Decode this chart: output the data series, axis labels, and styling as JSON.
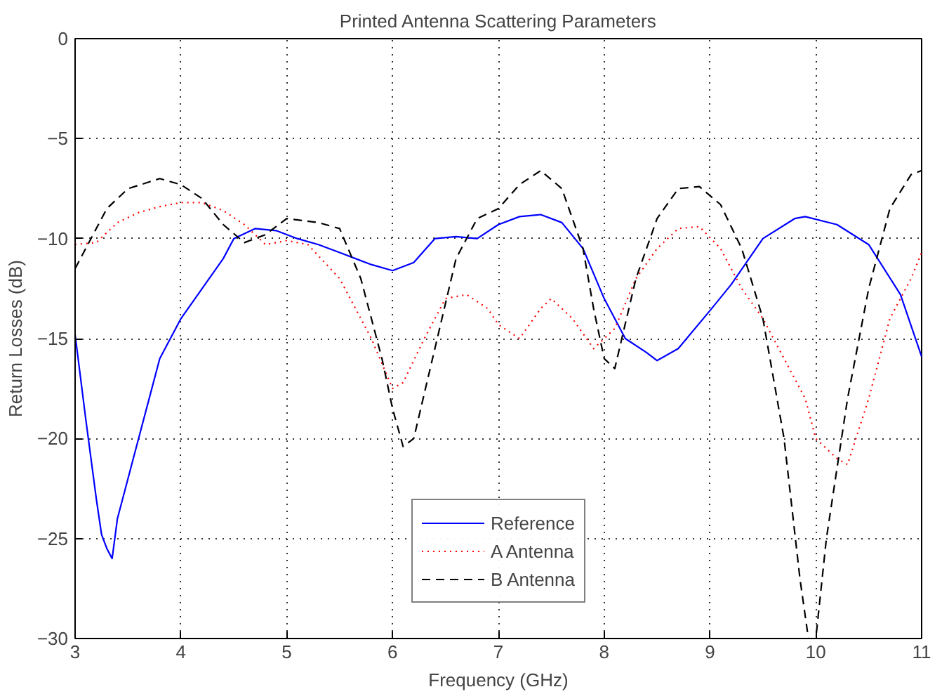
{
  "chart_data": {
    "type": "line",
    "title": "Printed Antenna Scattering Parameters",
    "xlabel": "Frequency (GHz)",
    "ylabel": "Return Losses (dB)",
    "xlim": [
      3,
      11
    ],
    "ylim": [
      -30,
      0
    ],
    "xticks": [
      3,
      4,
      5,
      6,
      7,
      8,
      9,
      10,
      11
    ],
    "yticks": [
      -30,
      -25,
      -20,
      -15,
      -10,
      -5,
      0
    ],
    "grid": true,
    "legend": "bottom",
    "marker": "none",
    "series": [
      {
        "name": "Reference",
        "color": "#0000ff",
        "line_style": "solid",
        "x": [
          3.0,
          3.1,
          3.2,
          3.25,
          3.3,
          3.35,
          3.4,
          3.5,
          3.6,
          3.7,
          3.8,
          4.0,
          4.2,
          4.4,
          4.5,
          4.7,
          4.9,
          5.1,
          5.3,
          5.5,
          5.8,
          6.0,
          6.2,
          6.4,
          6.6,
          6.8,
          7.0,
          7.2,
          7.4,
          7.6,
          7.8,
          8.0,
          8.2,
          8.4,
          8.5,
          8.7,
          9.0,
          9.2,
          9.5,
          9.8,
          9.9,
          10.2,
          10.5,
          10.8,
          11.0
        ],
        "values": [
          -14.8,
          -19,
          -23,
          -24.8,
          -25.5,
          -26,
          -24,
          -22,
          -20,
          -18,
          -16,
          -14,
          -12.5,
          -11,
          -10,
          -9.5,
          -9.6,
          -10,
          -10.3,
          -10.7,
          -11.3,
          -11.6,
          -11.2,
          -10,
          -9.9,
          -10,
          -9.3,
          -8.9,
          -8.8,
          -9.2,
          -10.5,
          -13,
          -15,
          -15.7,
          -16.1,
          -15.5,
          -13.6,
          -12.3,
          -10,
          -9,
          -8.9,
          -9.3,
          -10.3,
          -12.8,
          -15.9
        ]
      },
      {
        "name": "A Antenna",
        "color": "#ff0000",
        "line_style": "dotted",
        "x": [
          3.0,
          3.2,
          3.4,
          3.6,
          3.8,
          4.0,
          4.2,
          4.4,
          4.6,
          4.8,
          5.0,
          5.2,
          5.5,
          5.8,
          6.0,
          6.1,
          6.3,
          6.5,
          6.7,
          6.9,
          7.0,
          7.2,
          7.4,
          7.5,
          7.7,
          7.9,
          8.1,
          8.3,
          8.5,
          8.7,
          8.9,
          9.1,
          9.3,
          9.5,
          9.7,
          9.9,
          10.0,
          10.2,
          10.3,
          10.5,
          10.7,
          10.9,
          11.0
        ],
        "values": [
          -10.3,
          -10.2,
          -9.2,
          -8.7,
          -8.4,
          -8.2,
          -8.2,
          -8.6,
          -9.3,
          -10.3,
          -10.1,
          -10.3,
          -12,
          -15,
          -17.5,
          -17.2,
          -15,
          -13,
          -12.8,
          -13.5,
          -14.3,
          -15,
          -13.5,
          -13,
          -14,
          -15.5,
          -14.5,
          -12,
          -10.5,
          -9.5,
          -9.4,
          -10.5,
          -12.5,
          -14,
          -16,
          -18,
          -20,
          -21,
          -21.3,
          -18,
          -14,
          -12,
          -10.7
        ]
      },
      {
        "name": "B Antenna",
        "color": "#000000",
        "line_style": "dashed",
        "x": [
          3.0,
          3.1,
          3.3,
          3.5,
          3.8,
          4.0,
          4.2,
          4.4,
          4.6,
          4.8,
          5.0,
          5.3,
          5.5,
          5.7,
          5.9,
          6.0,
          6.1,
          6.2,
          6.4,
          6.6,
          6.8,
          7.0,
          7.2,
          7.4,
          7.6,
          7.8,
          7.9,
          8.0,
          8.1,
          8.3,
          8.5,
          8.7,
          8.9,
          9.1,
          9.3,
          9.5,
          9.7,
          9.85,
          9.93,
          10.0,
          10.1,
          10.3,
          10.5,
          10.7,
          10.9,
          11.0
        ],
        "values": [
          -11.5,
          -10.5,
          -8.5,
          -7.5,
          -7.0,
          -7.3,
          -8,
          -9.3,
          -10.2,
          -9.8,
          -9,
          -9.2,
          -9.5,
          -12,
          -16,
          -18.5,
          -20.4,
          -20,
          -15.5,
          -11,
          -9,
          -8.5,
          -7.3,
          -6.6,
          -7.5,
          -10.5,
          -13.5,
          -16,
          -16.5,
          -12,
          -9,
          -7.5,
          -7.4,
          -8.3,
          -10.5,
          -14,
          -20,
          -27,
          -30,
          -30,
          -25,
          -18,
          -12.5,
          -8.5,
          -6.8,
          -6.6
        ]
      }
    ]
  }
}
